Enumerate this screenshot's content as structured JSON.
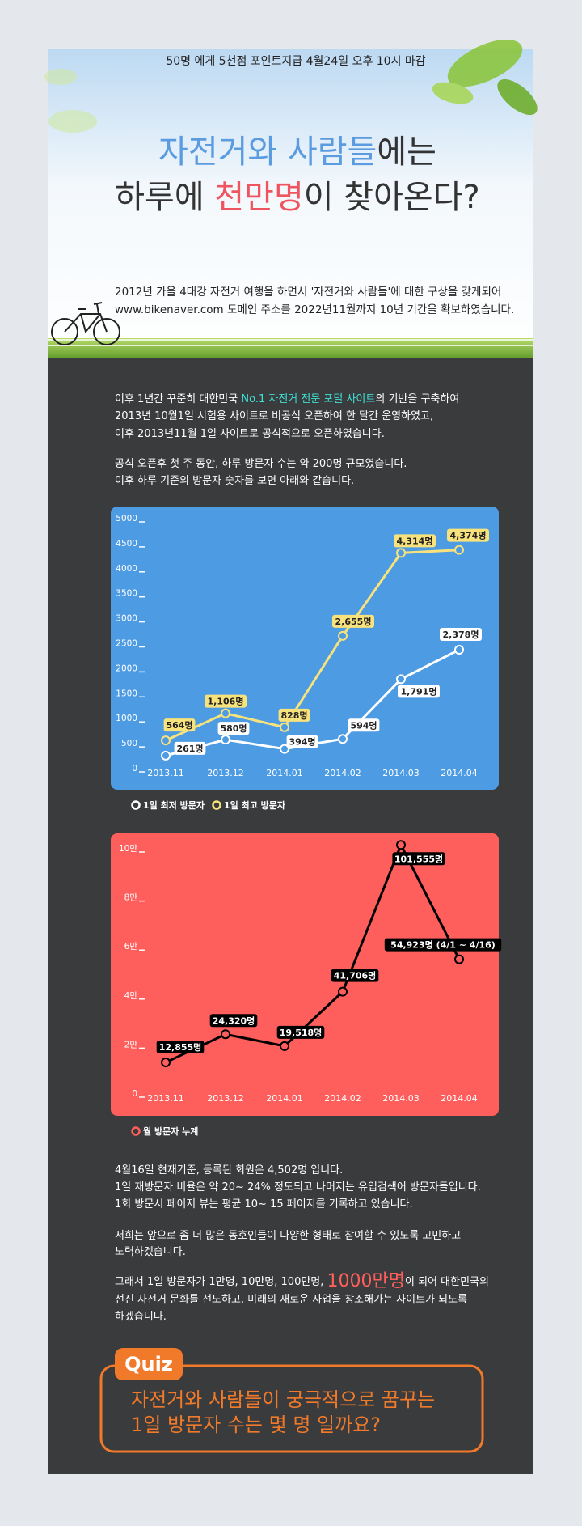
{
  "notice": "50명 에게 5천점 포인트지급 4월24일 오후 10시 마감",
  "title": {
    "line1": [
      "자전거와 사람들",
      "에는"
    ],
    "line2": [
      "하루에 ",
      "천만명",
      "이 찾아온다?"
    ]
  },
  "intro": [
    "2012년 가을  4대강 자전거 여행을 하면서 '자전거와 사람들'에 대한 구상을 갖게되어",
    "www.bikenaver.com 도메인 주소를  2022년11월까지 10년 기간을 확보하였습니다."
  ],
  "story": [
    [
      "이후 1년간 꾸준히 대한민국 ",
      "No.1 자전거 전문 포털 사이트",
      "의 기반을 구축하여"
    ],
    [
      "2013년 10월1일 시험용 사이트로 비공식 오픈하여 한 달간 운영하였고,"
    ],
    [
      "이후 2013년11월 1일 사이트로 공식적으로 오픈하였습니다."
    ],
    [
      "공식 오픈후 첫 주 동안, 하루 방문자 수는 약 200명 규모였습니다."
    ],
    [
      "이후 하루 기준의 방문자 숫자를 보면 아래와 같습니다."
    ]
  ],
  "chart_data": [
    {
      "type": "line",
      "background": "#4d9be3",
      "categories": [
        "2013.11",
        "2013.12",
        "2014.01",
        "2014.02",
        "2014.03",
        "2014.04"
      ],
      "series": [
        {
          "name": "1일 최저 방문자",
          "color": "#ffffff",
          "values": [
            261,
            580,
            394,
            594,
            1791,
            2378
          ],
          "value_labels": [
            "261명",
            "580명",
            "394명",
            "594명",
            "1,791명",
            "2,378명"
          ]
        },
        {
          "name": "1일 최고 방문자",
          "color": "#f7e27c",
          "values": [
            564,
            1106,
            828,
            2655,
            4314,
            4374
          ],
          "value_labels": [
            "564명",
            "1,106명",
            "828명",
            "2,655명",
            "4,314명",
            "4,374명"
          ]
        }
      ],
      "ylim": [
        0,
        5000
      ],
      "yticks": [
        0,
        500,
        1000,
        1500,
        2000,
        2500,
        3000,
        3500,
        4000,
        4500,
        5000
      ]
    },
    {
      "type": "line",
      "background": "#ff5f5c",
      "categories": [
        "2013.11",
        "2013.12",
        "2014.01",
        "2014.02",
        "2014.03",
        "2014.04"
      ],
      "series": [
        {
          "name": "월 방문자 누계",
          "color": "#000000",
          "values": [
            12855,
            24320,
            19518,
            41706,
            101555,
            54923
          ],
          "value_labels": [
            "12,855명",
            "24,320명",
            "19,518명",
            "41,706명",
            "101,555명",
            "54,923명 (4/1 ~ 4/16)"
          ]
        }
      ],
      "ylim": [
        0,
        100000
      ],
      "yticks": [
        0,
        {
          "value": 20000,
          "label": "2만"
        },
        {
          "value": 40000,
          "label": "4만"
        },
        {
          "value": 60000,
          "label": "6만"
        },
        {
          "value": 80000,
          "label": "8만"
        },
        {
          "value": 100000,
          "label": "10만"
        }
      ]
    }
  ],
  "outro": [
    [
      "4월16일 현재기준,  등록된 회원은 4,502명 입니다."
    ],
    [
      "1일 재방문자 비율은 약 20~ 24% 정도되고 나머지는 유입검색어 방문자들입니다."
    ],
    [
      "1회 방문시  페이지 뷰는 평균 10~ 15 페이지를 기록하고 있습니다."
    ],
    [
      " 저희는 앞으로 좀 더 많은 동호인들이 다양한 형태로 참여할 수 있도록 고민하고"
    ],
    [
      "노력하겠습니다."
    ],
    [
      "그래서 1일 방문자가 1만명, 10만명, 100만명, ",
      "1000만명",
      "이 되어 대한민국의"
    ],
    [
      "선진 자전거 문화를 선도하고, 미래의 새로운 사업을 창조해가는 사이트가 되도록"
    ],
    [
      "하겠습니다."
    ]
  ],
  "quiz": {
    "tag": "Quiz",
    "question": [
      "자전거와 사람들이 궁극적으로 꿈꾸는",
      "1일 방문자 수는 몇 명 일까요?"
    ]
  }
}
